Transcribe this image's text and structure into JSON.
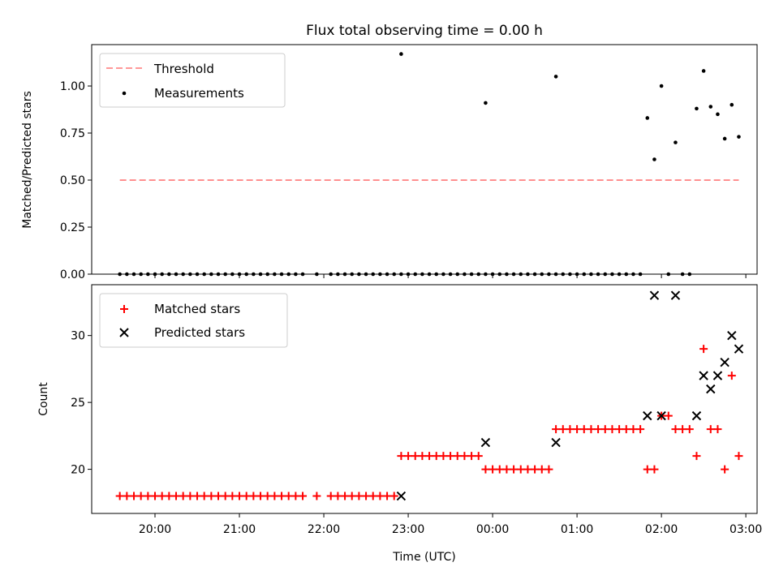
{
  "chart_data": [
    {
      "type": "scatter",
      "title": "Flux total observing time = 0.00 h",
      "xlabel": "",
      "ylabel": "Matched/Predicted stars",
      "ylim": [
        0.0,
        1.22
      ],
      "xlim": [
        "19:15",
        "03:08"
      ],
      "y_ticks": [
        "0.00",
        "0.25",
        "0.50",
        "0.75",
        "1.00"
      ],
      "y_tick_values": [
        0,
        0.25,
        0.5,
        0.75,
        1.0
      ],
      "legend_position": "top-left",
      "threshold": {
        "name": "Threshold",
        "value": 0.5,
        "x_start": "19:35",
        "x_end": "02:55",
        "color": "#ff7777"
      },
      "series": [
        {
          "name": "Measurements",
          "color": "#000000",
          "marker": "dot",
          "zeros_x": [
            "19:35",
            "19:40",
            "19:45",
            "19:50",
            "19:55",
            "20:00",
            "20:05",
            "20:10",
            "20:15",
            "20:20",
            "20:25",
            "20:30",
            "20:35",
            "20:40",
            "20:45",
            "20:50",
            "20:55",
            "21:00",
            "21:05",
            "21:10",
            "21:15",
            "21:20",
            "21:25",
            "21:30",
            "21:35",
            "21:40",
            "21:45",
            "21:55",
            "22:05",
            "22:10",
            "22:15",
            "22:20",
            "22:25",
            "22:30",
            "22:35",
            "22:40",
            "22:45",
            "22:50",
            "22:55",
            "23:00",
            "23:05",
            "23:10",
            "23:15",
            "23:20",
            "23:25",
            "23:30",
            "23:35",
            "23:40",
            "23:45",
            "23:50",
            "23:55",
            "00:00",
            "00:05",
            "00:10",
            "00:15",
            "00:20",
            "00:25",
            "00:30",
            "00:35",
            "00:40",
            "00:45",
            "00:50",
            "00:55",
            "01:00",
            "01:05",
            "01:10",
            "01:15",
            "01:20",
            "01:25",
            "01:30",
            "01:35",
            "01:40",
            "01:45",
            "02:05",
            "02:15",
            "02:20"
          ],
          "points": [
            {
              "x": "22:55",
              "y": 1.17
            },
            {
              "x": "23:55",
              "y": 0.91
            },
            {
              "x": "00:45",
              "y": 1.05
            },
            {
              "x": "01:50",
              "y": 0.83
            },
            {
              "x": "01:55",
              "y": 0.61
            },
            {
              "x": "02:00",
              "y": 1.0
            },
            {
              "x": "02:10",
              "y": 0.7
            },
            {
              "x": "02:25",
              "y": 0.88
            },
            {
              "x": "02:30",
              "y": 1.08
            },
            {
              "x": "02:35",
              "y": 0.89
            },
            {
              "x": "02:40",
              "y": 0.85
            },
            {
              "x": "02:45",
              "y": 0.72
            },
            {
              "x": "02:50",
              "y": 0.9
            },
            {
              "x": "02:55",
              "y": 0.73
            }
          ]
        }
      ]
    },
    {
      "type": "scatter",
      "title": "",
      "xlabel": "Time (UTC)",
      "ylabel": "Count",
      "ylim": [
        16.7,
        33.8
      ],
      "xlim": [
        "19:15",
        "03:08"
      ],
      "y_ticks": [
        "20",
        "25",
        "30"
      ],
      "y_tick_values": [
        20,
        25,
        30
      ],
      "x_ticks": [
        "20:00",
        "21:00",
        "22:00",
        "23:00",
        "00:00",
        "01:00",
        "02:00",
        "03:00"
      ],
      "legend_position": "top-left",
      "series": [
        {
          "name": "Matched stars",
          "color": "#ff0000",
          "marker": "plus",
          "points": [
            {
              "x": "19:35",
              "y": 18
            },
            {
              "x": "19:40",
              "y": 18
            },
            {
              "x": "19:45",
              "y": 18
            },
            {
              "x": "19:50",
              "y": 18
            },
            {
              "x": "19:55",
              "y": 18
            },
            {
              "x": "20:00",
              "y": 18
            },
            {
              "x": "20:05",
              "y": 18
            },
            {
              "x": "20:10",
              "y": 18
            },
            {
              "x": "20:15",
              "y": 18
            },
            {
              "x": "20:20",
              "y": 18
            },
            {
              "x": "20:25",
              "y": 18
            },
            {
              "x": "20:30",
              "y": 18
            },
            {
              "x": "20:35",
              "y": 18
            },
            {
              "x": "20:40",
              "y": 18
            },
            {
              "x": "20:45",
              "y": 18
            },
            {
              "x": "20:50",
              "y": 18
            },
            {
              "x": "20:55",
              "y": 18
            },
            {
              "x": "21:00",
              "y": 18
            },
            {
              "x": "21:05",
              "y": 18
            },
            {
              "x": "21:10",
              "y": 18
            },
            {
              "x": "21:15",
              "y": 18
            },
            {
              "x": "21:20",
              "y": 18
            },
            {
              "x": "21:25",
              "y": 18
            },
            {
              "x": "21:30",
              "y": 18
            },
            {
              "x": "21:35",
              "y": 18
            },
            {
              "x": "21:40",
              "y": 18
            },
            {
              "x": "21:45",
              "y": 18
            },
            {
              "x": "21:55",
              "y": 18
            },
            {
              "x": "22:05",
              "y": 18
            },
            {
              "x": "22:10",
              "y": 18
            },
            {
              "x": "22:15",
              "y": 18
            },
            {
              "x": "22:20",
              "y": 18
            },
            {
              "x": "22:25",
              "y": 18
            },
            {
              "x": "22:30",
              "y": 18
            },
            {
              "x": "22:35",
              "y": 18
            },
            {
              "x": "22:40",
              "y": 18
            },
            {
              "x": "22:45",
              "y": 18
            },
            {
              "x": "22:50",
              "y": 18
            },
            {
              "x": "22:55",
              "y": 21
            },
            {
              "x": "23:00",
              "y": 21
            },
            {
              "x": "23:05",
              "y": 21
            },
            {
              "x": "23:10",
              "y": 21
            },
            {
              "x": "23:15",
              "y": 21
            },
            {
              "x": "23:20",
              "y": 21
            },
            {
              "x": "23:25",
              "y": 21
            },
            {
              "x": "23:30",
              "y": 21
            },
            {
              "x": "23:35",
              "y": 21
            },
            {
              "x": "23:40",
              "y": 21
            },
            {
              "x": "23:45",
              "y": 21
            },
            {
              "x": "23:50",
              "y": 21
            },
            {
              "x": "23:55",
              "y": 20
            },
            {
              "x": "00:00",
              "y": 20
            },
            {
              "x": "00:05",
              "y": 20
            },
            {
              "x": "00:10",
              "y": 20
            },
            {
              "x": "00:15",
              "y": 20
            },
            {
              "x": "00:20",
              "y": 20
            },
            {
              "x": "00:25",
              "y": 20
            },
            {
              "x": "00:30",
              "y": 20
            },
            {
              "x": "00:35",
              "y": 20
            },
            {
              "x": "00:40",
              "y": 20
            },
            {
              "x": "00:45",
              "y": 23
            },
            {
              "x": "00:50",
              "y": 23
            },
            {
              "x": "00:55",
              "y": 23
            },
            {
              "x": "01:00",
              "y": 23
            },
            {
              "x": "01:05",
              "y": 23
            },
            {
              "x": "01:10",
              "y": 23
            },
            {
              "x": "01:15",
              "y": 23
            },
            {
              "x": "01:20",
              "y": 23
            },
            {
              "x": "01:25",
              "y": 23
            },
            {
              "x": "01:30",
              "y": 23
            },
            {
              "x": "01:35",
              "y": 23
            },
            {
              "x": "01:40",
              "y": 23
            },
            {
              "x": "01:45",
              "y": 23
            },
            {
              "x": "01:50",
              "y": 20
            },
            {
              "x": "01:55",
              "y": 20
            },
            {
              "x": "02:00",
              "y": 24
            },
            {
              "x": "02:05",
              "y": 24
            },
            {
              "x": "02:10",
              "y": 23
            },
            {
              "x": "02:15",
              "y": 23
            },
            {
              "x": "02:20",
              "y": 23
            },
            {
              "x": "02:25",
              "y": 21
            },
            {
              "x": "02:30",
              "y": 29
            },
            {
              "x": "02:35",
              "y": 23
            },
            {
              "x": "02:40",
              "y": 23
            },
            {
              "x": "02:45",
              "y": 20
            },
            {
              "x": "02:50",
              "y": 27
            },
            {
              "x": "02:55",
              "y": 21
            }
          ]
        },
        {
          "name": "Predicted stars",
          "color": "#000000",
          "marker": "cross",
          "points": [
            {
              "x": "22:55",
              "y": 18
            },
            {
              "x": "23:55",
              "y": 22
            },
            {
              "x": "00:45",
              "y": 22
            },
            {
              "x": "01:50",
              "y": 24
            },
            {
              "x": "01:55",
              "y": 33
            },
            {
              "x": "02:00",
              "y": 24
            },
            {
              "x": "02:10",
              "y": 33
            },
            {
              "x": "02:25",
              "y": 24
            },
            {
              "x": "02:30",
              "y": 27
            },
            {
              "x": "02:35",
              "y": 26
            },
            {
              "x": "02:40",
              "y": 27
            },
            {
              "x": "02:45",
              "y": 28
            },
            {
              "x": "02:50",
              "y": 30
            },
            {
              "x": "02:55",
              "y": 29
            }
          ]
        }
      ]
    }
  ]
}
